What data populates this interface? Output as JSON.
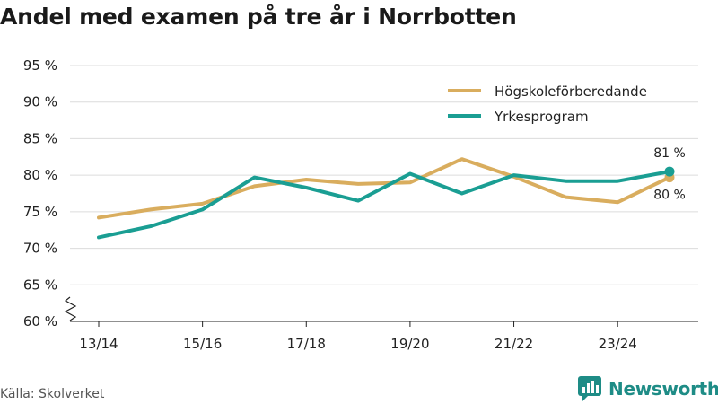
{
  "chart_data": {
    "type": "line",
    "title": "Andel med examen på tre år i Norrbotten",
    "categories": [
      "13/14",
      "14/15",
      "15/16",
      "16/17",
      "17/18",
      "18/19",
      "19/20",
      "20/21",
      "21/22",
      "22/23",
      "23/24",
      "24/25"
    ],
    "x_tick_labels": [
      "13/14",
      "15/16",
      "17/18",
      "19/20",
      "21/22",
      "23/24"
    ],
    "y_tick_labels": [
      "60 %",
      "65 %",
      "70 %",
      "75 %",
      "80 %",
      "85 %",
      "90 %",
      "95 %"
    ],
    "ylim": [
      60,
      95
    ],
    "y_axis_break": true,
    "grid": true,
    "legend_position": "top-right",
    "series": [
      {
        "name": "Högskoleförberedande",
        "color": "#d9ad5e",
        "values": [
          74.2,
          75.3,
          76.1,
          78.5,
          79.4,
          78.8,
          79.0,
          82.2,
          79.8,
          77.0,
          76.3,
          79.7
        ],
        "end_label": "80 %"
      },
      {
        "name": "Yrkesprogram",
        "color": "#1a9e93",
        "values": [
          71.5,
          73.0,
          75.3,
          79.7,
          78.3,
          76.5,
          80.2,
          77.5,
          80.0,
          79.2,
          79.2,
          80.5
        ],
        "end_label": "81 %"
      }
    ]
  },
  "footer": {
    "source": "Källa: Skolverket",
    "brand": "Newsworthy",
    "brand_icon": "bar-chart-logo-icon",
    "brand_color": "#1e8c86"
  }
}
